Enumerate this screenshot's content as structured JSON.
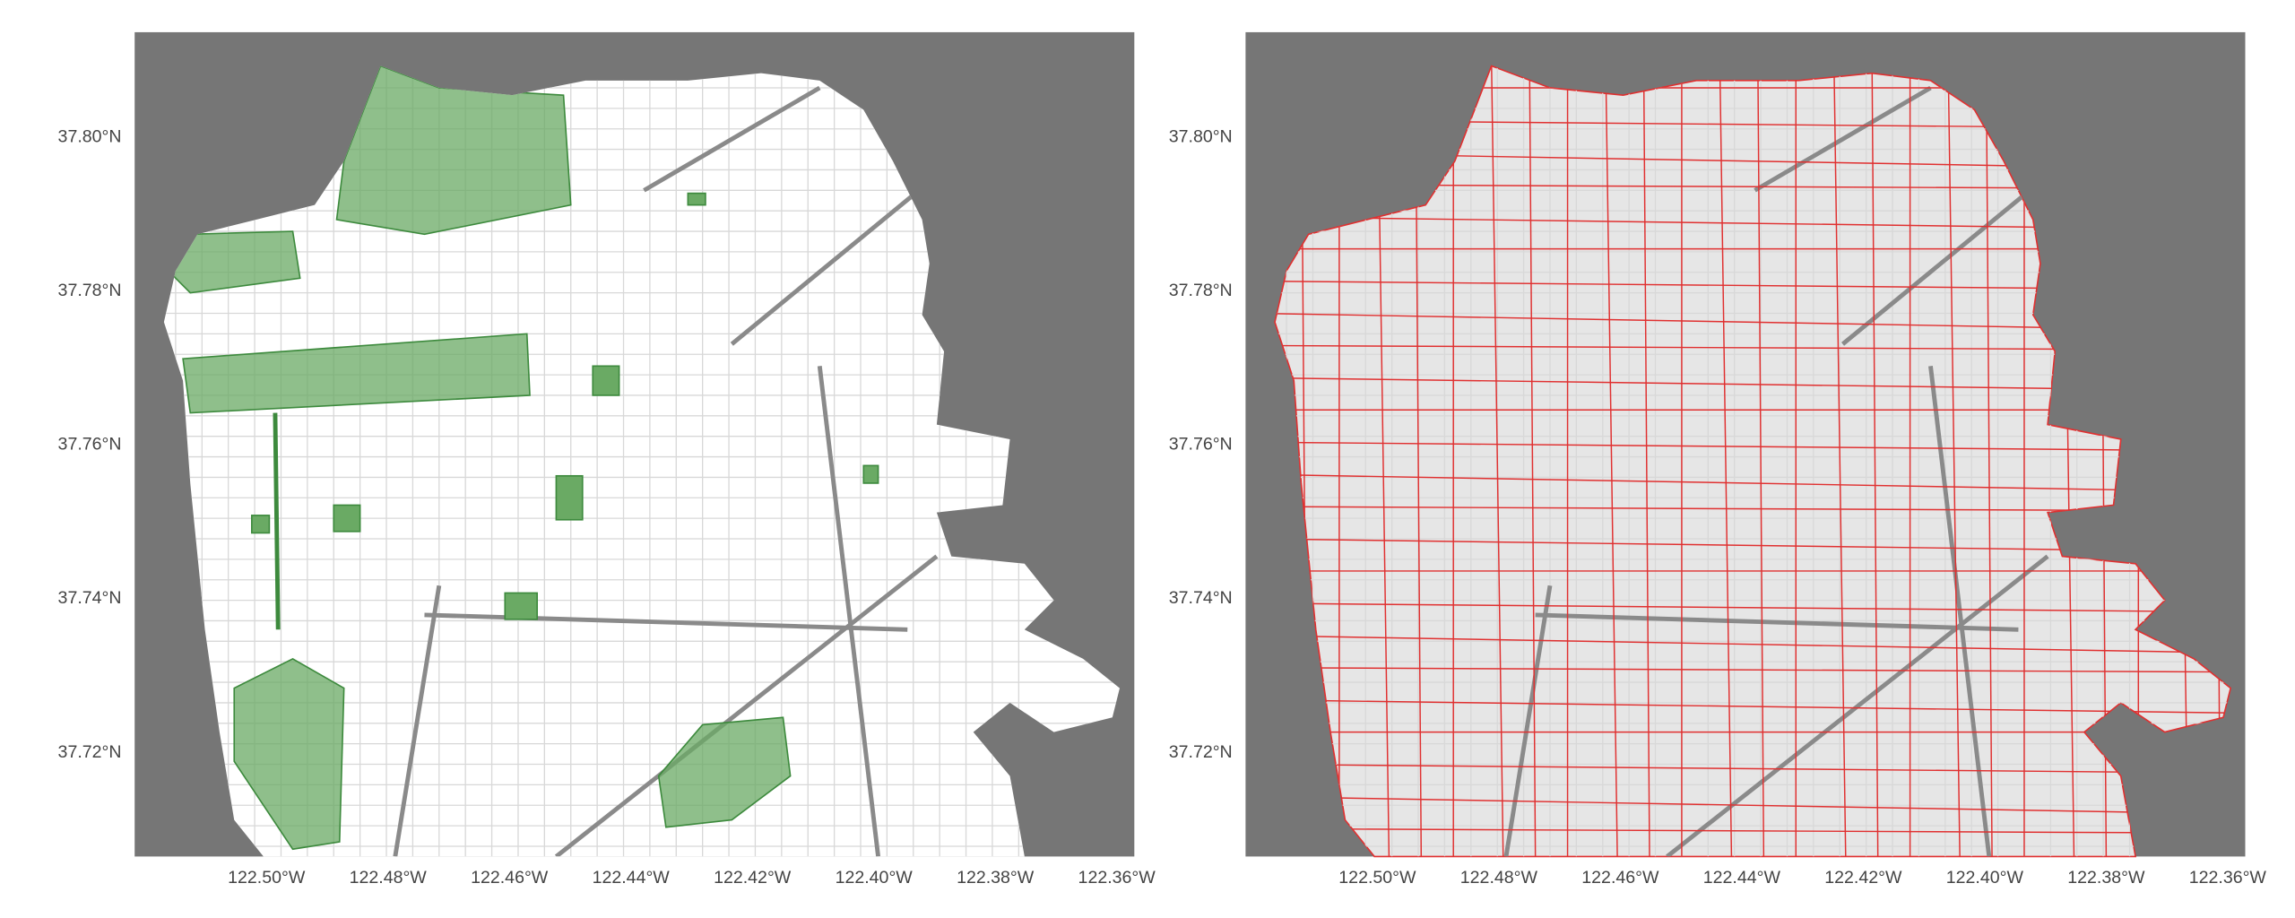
{
  "panels": [
    {
      "xlim": [
        -122.5217,
        -122.3571
      ],
      "ylim": [
        37.7065,
        37.8137
      ],
      "xticks": [
        {
          "value": -122.5,
          "label": "122.50°W"
        },
        {
          "value": -122.48,
          "label": "122.48°W"
        },
        {
          "value": -122.46,
          "label": "122.46°W"
        },
        {
          "value": -122.44,
          "label": "122.44°W"
        },
        {
          "value": -122.42,
          "label": "122.42°W"
        },
        {
          "value": -122.4,
          "label": "122.40°W"
        },
        {
          "value": -122.38,
          "label": "122.38°W"
        },
        {
          "value": -122.36,
          "label": "122.36°W"
        }
      ],
      "yticks": [
        {
          "value": 37.8,
          "label": "37.80°N"
        },
        {
          "value": 37.78,
          "label": "37.78°N"
        },
        {
          "value": 37.76,
          "label": "37.76°N"
        },
        {
          "value": 37.74,
          "label": "37.74°N"
        },
        {
          "value": 37.72,
          "label": "37.72°N"
        }
      ]
    },
    {
      "xlim": [
        -122.5217,
        -122.3571
      ],
      "ylim": [
        37.7065,
        37.8137
      ],
      "xticks": [
        {
          "value": -122.5,
          "label": "122.50°W"
        },
        {
          "value": -122.48,
          "label": "122.48°W"
        },
        {
          "value": -122.46,
          "label": "122.46°W"
        },
        {
          "value": -122.44,
          "label": "122.44°W"
        },
        {
          "value": -122.42,
          "label": "122.42°W"
        },
        {
          "value": -122.4,
          "label": "122.40°W"
        },
        {
          "value": -122.38,
          "label": "122.38°W"
        },
        {
          "value": -122.36,
          "label": "122.36°W"
        }
      ],
      "yticks": [
        {
          "value": 37.8,
          "label": "37.80°N"
        },
        {
          "value": 37.78,
          "label": "37.78°N"
        },
        {
          "value": 37.76,
          "label": "37.76°N"
        },
        {
          "value": 37.74,
          "label": "37.74°N"
        },
        {
          "value": 37.72,
          "label": "37.72°N"
        }
      ]
    }
  ]
}
